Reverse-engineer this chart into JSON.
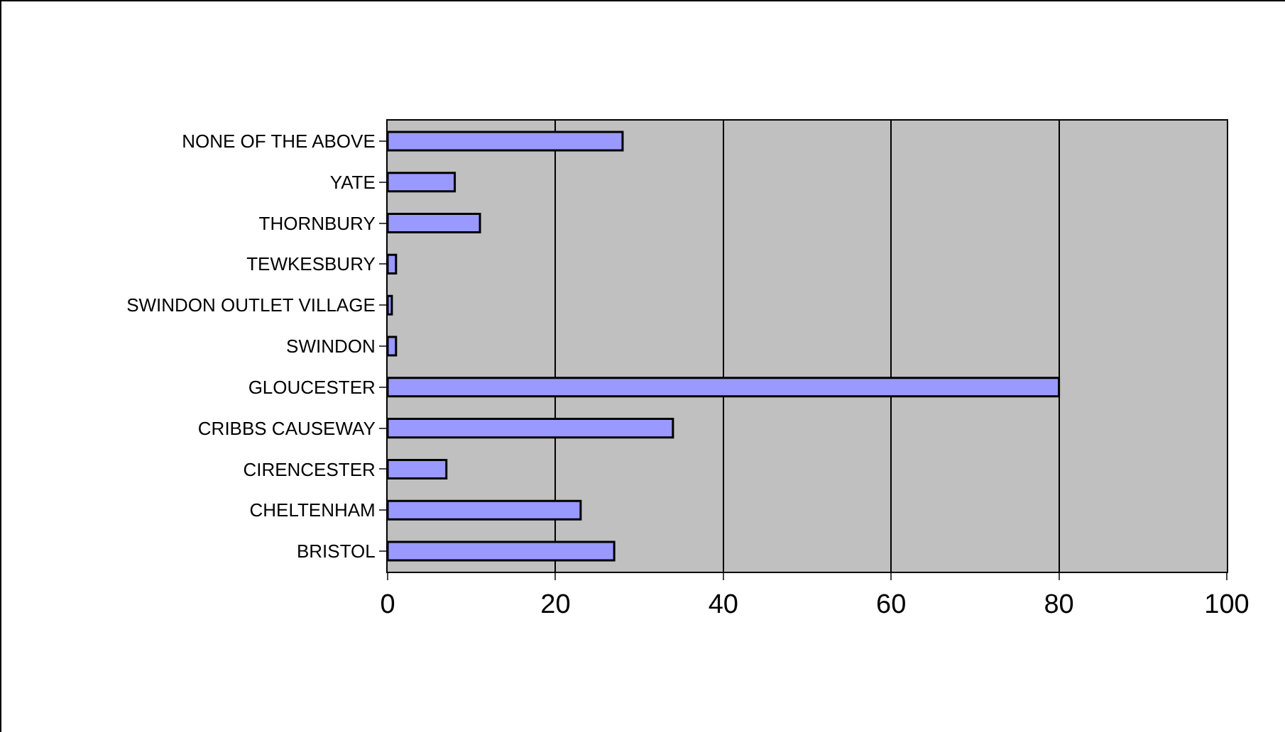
{
  "chart_data": {
    "type": "bar",
    "orientation": "horizontal",
    "categories": [
      "NONE OF THE ABOVE",
      "YATE",
      "THORNBURY",
      "TEWKESBURY",
      "SWINDON OUTLET VILLAGE",
      "SWINDON",
      "GLOUCESTER",
      "CRIBBS CAUSEWAY",
      "CIRENCESTER",
      "CHELTENHAM",
      "BRISTOL"
    ],
    "values": [
      28,
      8,
      11,
      1,
      0.5,
      1,
      80,
      34,
      7,
      23,
      27
    ],
    "color": "#9999ff",
    "xlim": [
      0,
      100
    ],
    "xticks": [
      0,
      20,
      40,
      60,
      80,
      100
    ],
    "grid": "x",
    "legend": false
  }
}
